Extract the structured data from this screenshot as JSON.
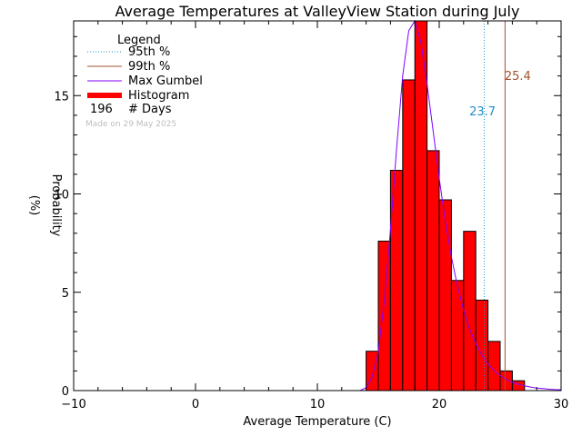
{
  "chart_data": {
    "type": "bar",
    "title": "Average Temperatures at ValleyView Station during July",
    "xlabel": "Average Temperature (C)",
    "ylabel": "Probability\n(%)",
    "xlim": [
      -10,
      30
    ],
    "ylim": [
      0,
      18.8
    ],
    "xticks": [
      -10,
      0,
      10,
      20,
      30
    ],
    "yticks": [
      0,
      5,
      10,
      15
    ],
    "bin_width": 1,
    "histogram": {
      "bin_left_edges": [
        14,
        15,
        16,
        17,
        18,
        19,
        20,
        21,
        22,
        23,
        24,
        25,
        26
      ],
      "values": [
        2.0,
        7.6,
        11.2,
        15.8,
        18.8,
        12.2,
        9.7,
        5.6,
        8.1,
        4.6,
        2.5,
        1.0,
        0.5
      ],
      "color": "#ff0000"
    },
    "gumbel": {
      "x": [
        13.5,
        14,
        14.5,
        15,
        15.5,
        16,
        16.5,
        17,
        17.5,
        18,
        18.5,
        19,
        19.5,
        20,
        20.5,
        21,
        21.5,
        22,
        22.5,
        23,
        23.5,
        24,
        24.5,
        25,
        25.5,
        26,
        26.5,
        27,
        27.5,
        28,
        28.5,
        29,
        29.5,
        30
      ],
      "y": [
        0.0,
        0.15,
        0.7,
        2.0,
        4.6,
        8.2,
        12.3,
        16.0,
        18.3,
        18.8,
        17.7,
        15.6,
        13.2,
        10.8,
        8.6,
        6.8,
        5.3,
        4.1,
        3.1,
        2.4,
        1.8,
        1.35,
        1.02,
        0.76,
        0.57,
        0.42,
        0.32,
        0.24,
        0.18,
        0.13,
        0.1,
        0.07,
        0.05,
        0.04
      ],
      "color": "#8000ff"
    },
    "percentile_95": {
      "value": 23.7,
      "label": "23.7",
      "color": "#1f8fc9"
    },
    "percentile_99": {
      "value": 25.4,
      "label": "25.4",
      "color": "#a0522d"
    },
    "legend": {
      "title": "Legend",
      "placement": "top-left",
      "entries": [
        {
          "label": "95th %",
          "style": "dotted",
          "color": "#1f8fc9"
        },
        {
          "label": "99th %",
          "style": "solid",
          "color": "#a0522d"
        },
        {
          "label": "Max Gumbel",
          "style": "solid",
          "color": "#8000ff"
        },
        {
          "label": "Histogram",
          "style": "thick",
          "color": "#ff0000"
        }
      ],
      "count_value": "196",
      "count_label": "# Days"
    },
    "footnote": "Made on 29 May 2025"
  }
}
